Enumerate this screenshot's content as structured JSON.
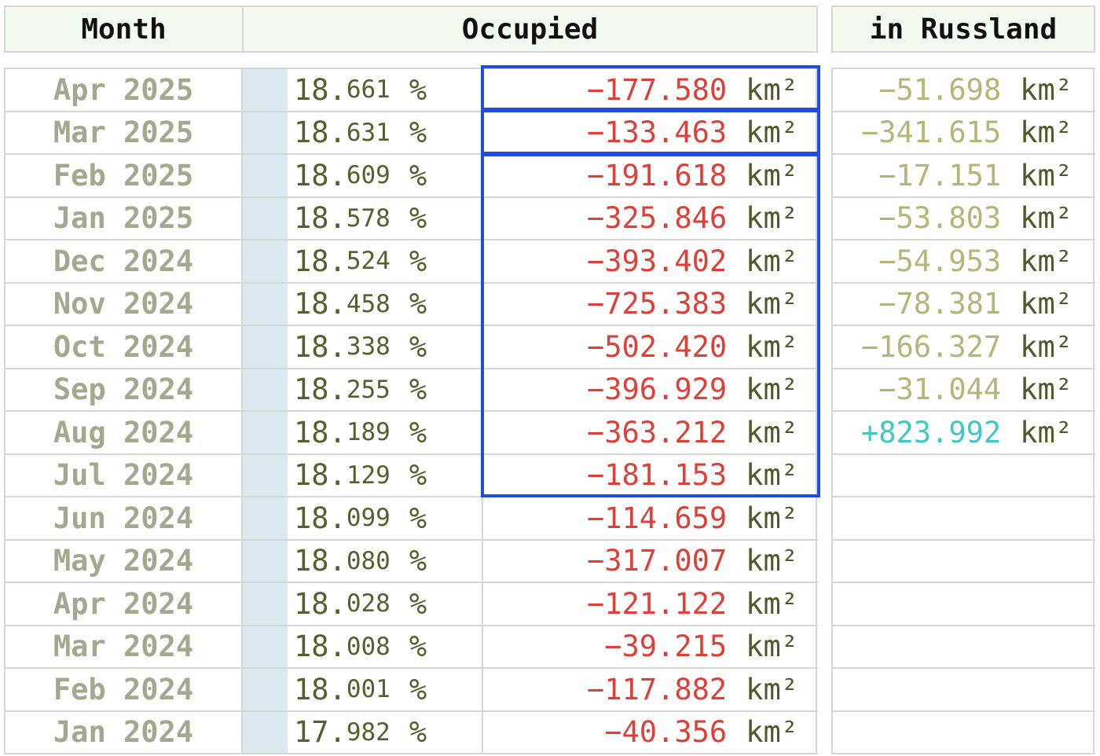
{
  "headers": {
    "month": "Month",
    "occupied": "Occupied",
    "russland": "in Russland"
  },
  "colors": {
    "highlight": "#1f4de0",
    "negative": "#dc4038",
    "russland_negative": "#b5b479",
    "russland_positive": "#3fc9c0",
    "bar": "#daeaf0",
    "header_bg": "#f3faf0"
  },
  "unit": "km²",
  "percent_sign": "%",
  "rows": [
    {
      "month": "Apr 2025",
      "pct_int": "18.",
      "pct_dec": "661",
      "change": "−177.580",
      "russland": "−51.698"
    },
    {
      "month": "Mar 2025",
      "pct_int": "18.",
      "pct_dec": "631",
      "change": "−133.463",
      "russland": "−341.615"
    },
    {
      "month": "Feb 2025",
      "pct_int": "18.",
      "pct_dec": "609",
      "change": "−191.618",
      "russland": "−17.151"
    },
    {
      "month": "Jan 2025",
      "pct_int": "18.",
      "pct_dec": "578",
      "change": "−325.846",
      "russland": "−53.803"
    },
    {
      "month": "Dec 2024",
      "pct_int": "18.",
      "pct_dec": "524",
      "change": "−393.402",
      "russland": "−54.953"
    },
    {
      "month": "Nov 2024",
      "pct_int": "18.",
      "pct_dec": "458",
      "change": "−725.383",
      "russland": "−78.381"
    },
    {
      "month": "Oct 2024",
      "pct_int": "18.",
      "pct_dec": "338",
      "change": "−502.420",
      "russland": "−166.327"
    },
    {
      "month": "Sep 2024",
      "pct_int": "18.",
      "pct_dec": "255",
      "change": "−396.929",
      "russland": "−31.044"
    },
    {
      "month": "Aug 2024",
      "pct_int": "18.",
      "pct_dec": "189",
      "change": "−363.212",
      "russland": "+823.992"
    },
    {
      "month": "Jul 2024",
      "pct_int": "18.",
      "pct_dec": "129",
      "change": "−181.153",
      "russland": ""
    },
    {
      "month": "Jun 2024",
      "pct_int": "18.",
      "pct_dec": "099",
      "change": "−114.659",
      "russland": ""
    },
    {
      "month": "May 2024",
      "pct_int": "18.",
      "pct_dec": "080",
      "change": "−317.007",
      "russland": ""
    },
    {
      "month": "Apr 2024",
      "pct_int": "18.",
      "pct_dec": "028",
      "change": "−121.122",
      "russland": ""
    },
    {
      "month": "Mar 2024",
      "pct_int": "18.",
      "pct_dec": "008",
      "change": "−39.215",
      "russland": ""
    },
    {
      "month": "Feb 2024",
      "pct_int": "18.",
      "pct_dec": "001",
      "change": "−117.882",
      "russland": ""
    },
    {
      "month": "Jan 2024",
      "pct_int": "17.",
      "pct_dec": "982",
      "change": "−40.356",
      "russland": ""
    }
  ]
}
